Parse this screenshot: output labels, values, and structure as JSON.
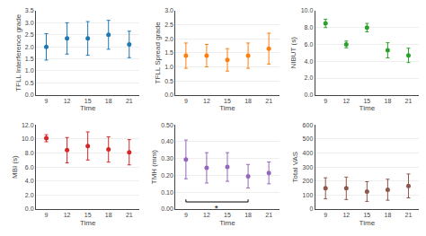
{
  "chart_data": [
    {
      "type": "scatter",
      "marker": "circle",
      "grid": "y",
      "xlabel": "Time",
      "x": [
        9,
        12,
        15,
        18,
        21
      ],
      "xlim": [
        7.5,
        22.5
      ],
      "xticks": [
        9,
        12,
        15,
        18,
        21
      ],
      "ylabel": "TFLL Interference grade",
      "ylim": [
        0.0,
        3.5
      ],
      "yticks": [
        {
          "value": 0.0,
          "label": "0.0"
        },
        0.5,
        {
          "value": 1.0,
          "label": "1.0"
        },
        1.5,
        {
          "value": 2.0,
          "label": "2.0"
        },
        2.5,
        {
          "value": 3.0,
          "label": "3.0"
        },
        3.5
      ],
      "values": [
        2.0,
        2.35,
        2.35,
        2.5,
        2.1
      ],
      "errors": [
        0.55,
        0.65,
        0.7,
        0.6,
        0.55
      ]
    },
    {
      "type": "scatter",
      "marker": "circle",
      "grid": "y",
      "xlabel": "Time",
      "x": [
        9,
        12,
        15,
        18,
        21
      ],
      "xlim": [
        7.5,
        22.5
      ],
      "xticks": [
        9,
        12,
        15,
        18,
        21
      ],
      "ylabel": "TFLL Spread grade",
      "ylim": [
        0.0,
        3.0
      ],
      "yticks": [
        {
          "value": 0.0,
          "label": "0.0"
        },
        0.5,
        {
          "value": 1.0,
          "label": "1.0"
        },
        1.5,
        {
          "value": 2.0,
          "label": "2.0"
        },
        2.5,
        {
          "value": 3.0,
          "label": "3.0"
        }
      ],
      "values": [
        1.4,
        1.4,
        1.25,
        1.4,
        1.65
      ],
      "errors": [
        0.45,
        0.4,
        0.4,
        0.45,
        0.55
      ]
    },
    {
      "type": "scatter",
      "marker": "circle",
      "grid": "y",
      "xlabel": "Time",
      "x": [
        9,
        12,
        15,
        18,
        21
      ],
      "xlim": [
        7.5,
        22.5
      ],
      "xticks": [
        9,
        12,
        15,
        18,
        21
      ],
      "ylabel": "NIBUT (s)",
      "ylim": [
        0.0,
        10.0
      ],
      "yticks": [
        {
          "value": 0.0,
          "label": "0.0"
        },
        {
          "value": 2.0,
          "label": "2.0"
        },
        {
          "value": 4.0,
          "label": "4.0"
        },
        {
          "value": 6.0,
          "label": "6.0"
        },
        {
          "value": 8.0,
          "label": "8.0"
        },
        {
          "value": 10.0,
          "label": "10.0"
        }
      ],
      "values": [
        8.5,
        6.0,
        8.0,
        5.3,
        4.7
      ],
      "errors": [
        0.5,
        0.4,
        0.5,
        0.9,
        0.85
      ]
    },
    {
      "type": "scatter",
      "marker": "circle",
      "grid": "y",
      "xlabel": "Time",
      "x": [
        9,
        12,
        15,
        18,
        21
      ],
      "xlim": [
        7.5,
        22.5
      ],
      "xticks": [
        9,
        12,
        15,
        18,
        21
      ],
      "ylabel": "MBI (s)",
      "ylim": [
        0.0,
        12.0
      ],
      "yticks": [
        {
          "value": 0.0,
          "label": "0.0"
        },
        {
          "value": 2.0,
          "label": "2.0"
        },
        {
          "value": 4.0,
          "label": "4.0"
        },
        {
          "value": 6.0,
          "label": "6.0"
        },
        {
          "value": 8.0,
          "label": "8.0"
        },
        {
          "value": 10.0,
          "label": "10.0"
        },
        {
          "value": 12.0,
          "label": "12.0"
        }
      ],
      "values": [
        10.1,
        8.4,
        9.0,
        8.5,
        8.1
      ],
      "errors": [
        0.5,
        1.8,
        2.0,
        1.8,
        1.8
      ]
    },
    {
      "type": "scatter",
      "marker": "circle",
      "grid": "y",
      "xlabel": "Time",
      "x": [
        9,
        12,
        15,
        18,
        21
      ],
      "xlim": [
        7.5,
        22.5
      ],
      "xticks": [
        9,
        12,
        15,
        18,
        21
      ],
      "ylabel": "TMH (mm)",
      "ylim": [
        0.0,
        0.5
      ],
      "yticks": [
        {
          "value": 0.0,
          "label": "0.00"
        },
        {
          "value": 0.1,
          "label": "0.10"
        },
        {
          "value": 0.2,
          "label": "0.20"
        },
        {
          "value": 0.3,
          "label": "0.30"
        },
        {
          "value": 0.4,
          "label": "0.40"
        },
        {
          "value": 0.5,
          "label": "0.50"
        }
      ],
      "values": [
        0.295,
        0.245,
        0.25,
        0.195,
        0.215
      ],
      "errors": [
        0.115,
        0.09,
        0.085,
        0.07,
        0.065
      ],
      "annotations": [
        {
          "text": "*",
          "x": [
            9,
            18
          ]
        }
      ]
    },
    {
      "type": "scatter",
      "marker": "circle",
      "grid": "y",
      "xlabel": "Time",
      "x": [
        9,
        12,
        15,
        18,
        21
      ],
      "xlim": [
        7.5,
        22.5
      ],
      "xticks": [
        9,
        12,
        15,
        18,
        21
      ],
      "ylabel": "Total VAS",
      "ylim": [
        0,
        600
      ],
      "yticks": [
        0,
        100,
        200,
        300,
        400,
        500,
        600
      ],
      "values": [
        148,
        148,
        125,
        138,
        165
      ],
      "errors": [
        75,
        80,
        70,
        75,
        85
      ]
    }
  ]
}
